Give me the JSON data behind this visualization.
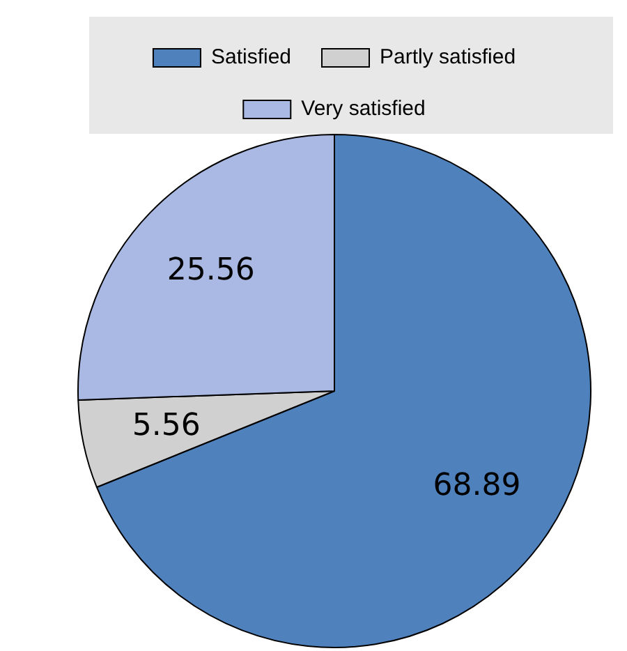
{
  "chart_data": {
    "type": "pie",
    "categories": [
      "Satisfied",
      "Partly satisfied",
      "Very satisfied"
    ],
    "values": [
      68.89,
      5.56,
      25.56
    ],
    "colors": [
      "#4f81bd",
      "#d0d0d0",
      "#aab9e3"
    ],
    "data_labels": true,
    "legend": "top"
  }
}
